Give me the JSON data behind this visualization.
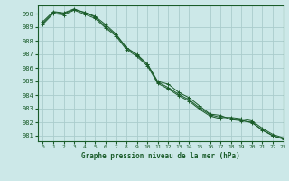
{
  "title": "Graphe pression niveau de la mer (hPa)",
  "bg_color": "#cce8e8",
  "grid_color": "#aacccc",
  "line_color": "#1a5c2a",
  "xlim": [
    -0.5,
    23
  ],
  "ylim": [
    980.6,
    990.6
  ],
  "yticks": [
    981,
    982,
    983,
    984,
    985,
    986,
    987,
    988,
    989,
    990
  ],
  "xticks": [
    0,
    1,
    2,
    3,
    4,
    5,
    6,
    7,
    8,
    9,
    10,
    11,
    12,
    13,
    14,
    15,
    16,
    17,
    18,
    19,
    20,
    21,
    22,
    23
  ],
  "series": [
    [
      989.3,
      990.1,
      990.0,
      990.3,
      990.1,
      989.8,
      989.2,
      988.5,
      987.5,
      987.0,
      986.3,
      985.0,
      984.8,
      984.2,
      983.8,
      983.2,
      982.6,
      982.5,
      982.2,
      982.1,
      982.0,
      981.4,
      981.0,
      980.8
    ],
    [
      989.4,
      990.15,
      990.05,
      990.35,
      990.05,
      989.75,
      989.05,
      988.45,
      987.45,
      986.95,
      986.25,
      984.95,
      984.55,
      984.05,
      983.65,
      983.05,
      982.55,
      982.35,
      982.35,
      982.25,
      982.1,
      981.55,
      981.1,
      980.85
    ],
    [
      989.2,
      990.0,
      989.9,
      990.25,
      989.95,
      989.65,
      988.95,
      988.35,
      987.35,
      986.85,
      986.15,
      984.85,
      984.45,
      983.95,
      983.55,
      982.95,
      982.45,
      982.25,
      982.25,
      982.15,
      981.95,
      981.45,
      981.0,
      980.75
    ]
  ]
}
